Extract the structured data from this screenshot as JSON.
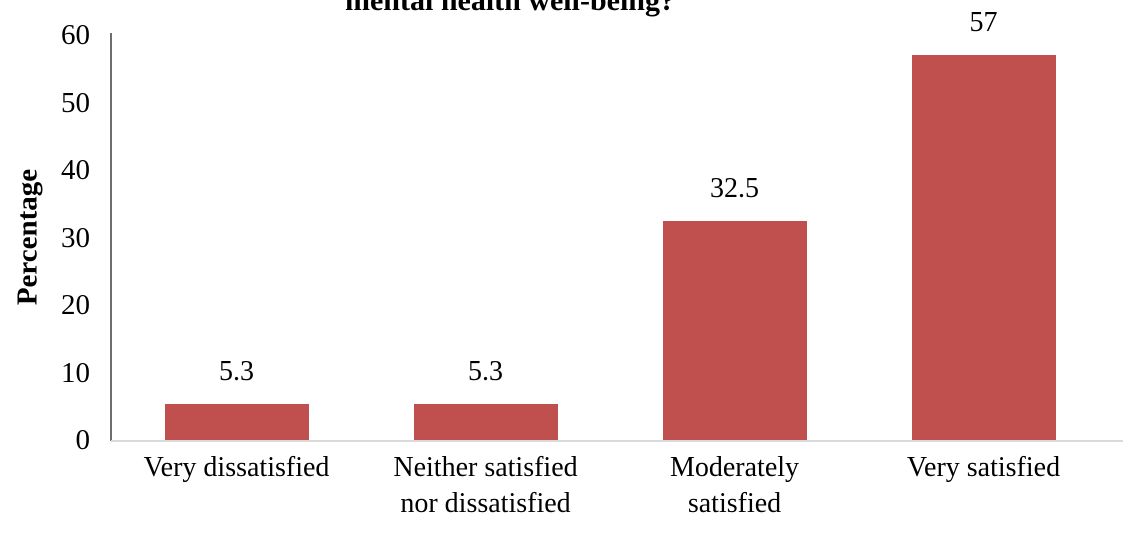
{
  "chart_data": {
    "type": "bar",
    "title": "mental health well-being?",
    "title_note": "title partially clipped at top edge of image",
    "categories": [
      "Very dissatisfied",
      "Neither satisfied nor dissatisfied",
      "Moderately satisfied",
      "Very satisfied"
    ],
    "values": [
      5.3,
      5.3,
      32.5,
      57
    ],
    "data_labels": [
      "5.3",
      "5.3",
      "32.5",
      "57"
    ],
    "xlabel": "",
    "ylabel": "Percentage",
    "yticks": [
      0,
      10,
      20,
      30,
      40,
      50,
      60
    ],
    "ylim": [
      0,
      60
    ],
    "grid": false,
    "legend": false,
    "colors": {
      "bar": "#C0504D",
      "y_axis_line": "#6E6E6E",
      "x_axis_line": "#D9D9D9",
      "text": "#000000"
    }
  }
}
